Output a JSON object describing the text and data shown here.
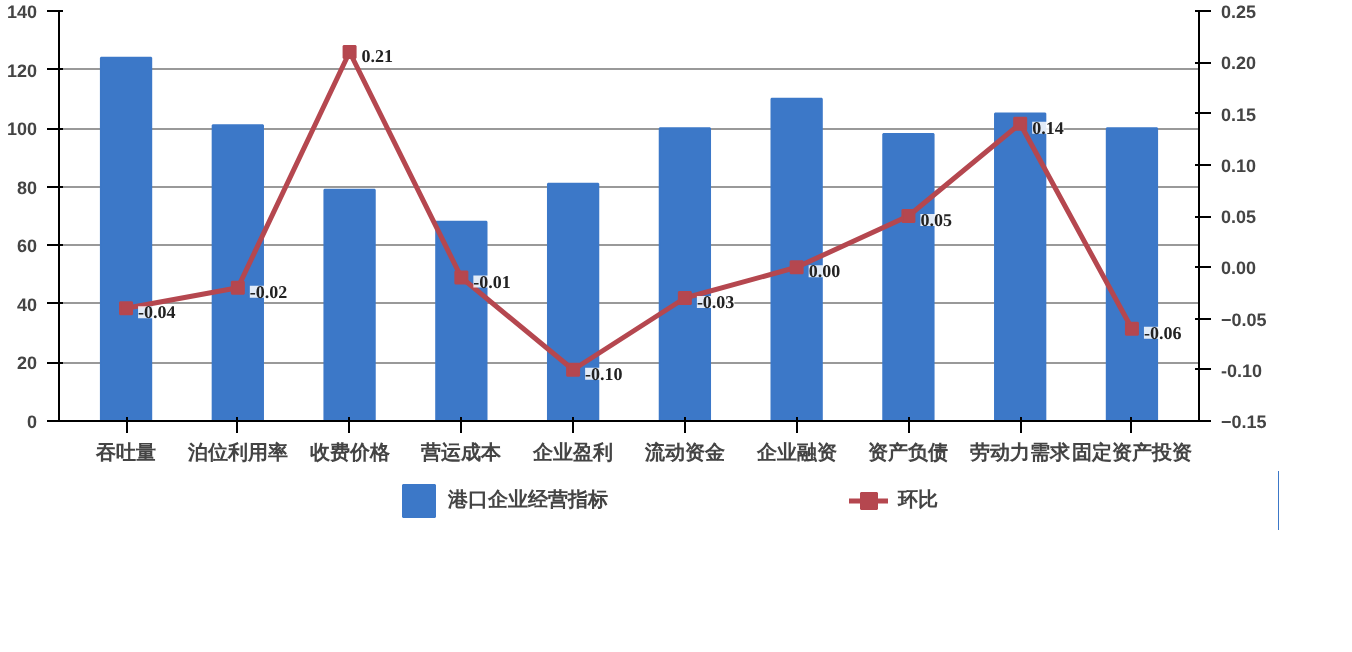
{
  "chart_data": {
    "type": "bar",
    "categories": [
      "吞吐量",
      "泊位利用率",
      "收费价格",
      "营运成本",
      "企业盈利",
      "流动资金",
      "企业融资",
      "资产负债",
      "劳动力需求",
      "固定资产投资"
    ],
    "series": [
      {
        "name": "港口企业经营指标",
        "color": "#3c78c8",
        "values": [
          124,
          101,
          79,
          68,
          81,
          100,
          110,
          98,
          105,
          100
        ]
      },
      {
        "name": "环比",
        "type": "line",
        "axis": "y2",
        "color": "#b5474f",
        "marker": "square",
        "values": [
          -0.04,
          -0.02,
          0.21,
          -0.01,
          -0.1,
          -0.03,
          0.0,
          0.05,
          0.14,
          -0.06
        ],
        "value_labels": [
          "-0.04",
          "-0.02",
          "0.21",
          "-0.01",
          "-0.10",
          "-0.03",
          "0.00",
          "0.05",
          "0.14",
          "-0.06"
        ]
      }
    ],
    "ylim": [
      0,
      140
    ],
    "yticks": [
      0,
      20,
      40,
      60,
      80,
      100,
      120,
      140
    ],
    "y2lim": [
      -0.15,
      0.25
    ],
    "y2ticks": [
      -0.15,
      {
        "value": -0.1,
        "label": "-0.10"
      },
      -0.05,
      {
        "value": 0,
        "label": "0.00"
      },
      0.05,
      {
        "value": 0.1,
        "label": "0.10"
      },
      0.15,
      {
        "value": 0.2,
        "label": "0.20"
      },
      0.25
    ],
    "grid": "y",
    "legend": "bottom"
  }
}
